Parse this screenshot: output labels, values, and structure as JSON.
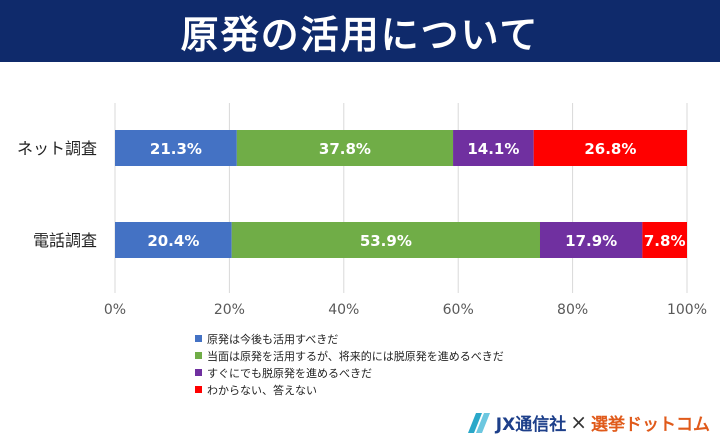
{
  "header": {
    "title": "原発の活用について"
  },
  "chart_data": {
    "type": "bar",
    "orientation": "horizontal",
    "stacked": true,
    "categories": [
      "ネット調査",
      "電話調査"
    ],
    "series": [
      {
        "name": "原発は今後も活用すべきだ",
        "values": [
          21.3,
          20.4
        ],
        "labels": [
          "21.3%",
          "20.4%"
        ],
        "color": "#4472c4"
      },
      {
        "name": "当面は原発を活用するが、将来的には脱原発を進めるべきだ",
        "values": [
          37.8,
          53.9
        ],
        "labels": [
          "37.8%",
          "53.9%"
        ],
        "color": "#70ad47"
      },
      {
        "name": "すぐにでも脱原発を進めるべきだ",
        "values": [
          14.1,
          17.9
        ],
        "labels": [
          "14.1%",
          "17.9%"
        ],
        "color": "#7030a0"
      },
      {
        "name": "わからない、答えない",
        "values": [
          26.8,
          7.8
        ],
        "labels": [
          "26.8%",
          "7.8%"
        ],
        "color": "#ff0000"
      }
    ],
    "xlim": [
      0,
      100
    ],
    "x_ticks": [
      "0%",
      "20%",
      "40%",
      "60%",
      "80%",
      "100%"
    ],
    "grid": true,
    "legend_position": "bottom"
  },
  "logo": {
    "left": "JX通信社",
    "times": "×",
    "right": "選挙ドットコム"
  }
}
